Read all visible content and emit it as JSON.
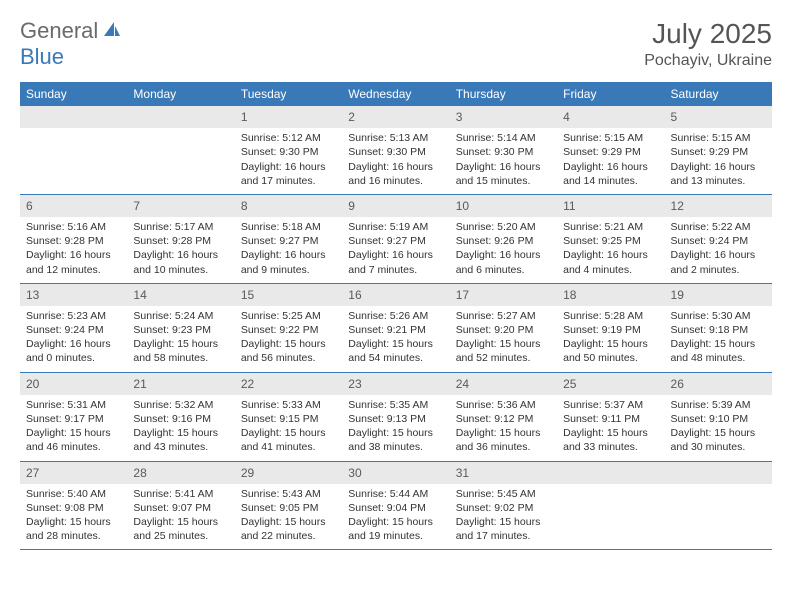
{
  "logo": {
    "part1": "General",
    "part2": "Blue"
  },
  "title": "July 2025",
  "location": "Pochayiv, Ukraine",
  "colors": {
    "header_bg": "#3a79b7",
    "header_text": "#ffffff",
    "daynum_bg": "#e9e9e9",
    "text": "#333333",
    "rule": "#3a79b7"
  },
  "daysOfWeek": [
    "Sunday",
    "Monday",
    "Tuesday",
    "Wednesday",
    "Thursday",
    "Friday",
    "Saturday"
  ],
  "weeks": [
    [
      {
        "n": "",
        "sr": "",
        "ss": "",
        "d1": "",
        "d2": ""
      },
      {
        "n": "",
        "sr": "",
        "ss": "",
        "d1": "",
        "d2": ""
      },
      {
        "n": "1",
        "sr": "Sunrise: 5:12 AM",
        "ss": "Sunset: 9:30 PM",
        "d1": "Daylight: 16 hours",
        "d2": "and 17 minutes."
      },
      {
        "n": "2",
        "sr": "Sunrise: 5:13 AM",
        "ss": "Sunset: 9:30 PM",
        "d1": "Daylight: 16 hours",
        "d2": "and 16 minutes."
      },
      {
        "n": "3",
        "sr": "Sunrise: 5:14 AM",
        "ss": "Sunset: 9:30 PM",
        "d1": "Daylight: 16 hours",
        "d2": "and 15 minutes."
      },
      {
        "n": "4",
        "sr": "Sunrise: 5:15 AM",
        "ss": "Sunset: 9:29 PM",
        "d1": "Daylight: 16 hours",
        "d2": "and 14 minutes."
      },
      {
        "n": "5",
        "sr": "Sunrise: 5:15 AM",
        "ss": "Sunset: 9:29 PM",
        "d1": "Daylight: 16 hours",
        "d2": "and 13 minutes."
      }
    ],
    [
      {
        "n": "6",
        "sr": "Sunrise: 5:16 AM",
        "ss": "Sunset: 9:28 PM",
        "d1": "Daylight: 16 hours",
        "d2": "and 12 minutes."
      },
      {
        "n": "7",
        "sr": "Sunrise: 5:17 AM",
        "ss": "Sunset: 9:28 PM",
        "d1": "Daylight: 16 hours",
        "d2": "and 10 minutes."
      },
      {
        "n": "8",
        "sr": "Sunrise: 5:18 AM",
        "ss": "Sunset: 9:27 PM",
        "d1": "Daylight: 16 hours",
        "d2": "and 9 minutes."
      },
      {
        "n": "9",
        "sr": "Sunrise: 5:19 AM",
        "ss": "Sunset: 9:27 PM",
        "d1": "Daylight: 16 hours",
        "d2": "and 7 minutes."
      },
      {
        "n": "10",
        "sr": "Sunrise: 5:20 AM",
        "ss": "Sunset: 9:26 PM",
        "d1": "Daylight: 16 hours",
        "d2": "and 6 minutes."
      },
      {
        "n": "11",
        "sr": "Sunrise: 5:21 AM",
        "ss": "Sunset: 9:25 PM",
        "d1": "Daylight: 16 hours",
        "d2": "and 4 minutes."
      },
      {
        "n": "12",
        "sr": "Sunrise: 5:22 AM",
        "ss": "Sunset: 9:24 PM",
        "d1": "Daylight: 16 hours",
        "d2": "and 2 minutes."
      }
    ],
    [
      {
        "n": "13",
        "sr": "Sunrise: 5:23 AM",
        "ss": "Sunset: 9:24 PM",
        "d1": "Daylight: 16 hours",
        "d2": "and 0 minutes."
      },
      {
        "n": "14",
        "sr": "Sunrise: 5:24 AM",
        "ss": "Sunset: 9:23 PM",
        "d1": "Daylight: 15 hours",
        "d2": "and 58 minutes."
      },
      {
        "n": "15",
        "sr": "Sunrise: 5:25 AM",
        "ss": "Sunset: 9:22 PM",
        "d1": "Daylight: 15 hours",
        "d2": "and 56 minutes."
      },
      {
        "n": "16",
        "sr": "Sunrise: 5:26 AM",
        "ss": "Sunset: 9:21 PM",
        "d1": "Daylight: 15 hours",
        "d2": "and 54 minutes."
      },
      {
        "n": "17",
        "sr": "Sunrise: 5:27 AM",
        "ss": "Sunset: 9:20 PM",
        "d1": "Daylight: 15 hours",
        "d2": "and 52 minutes."
      },
      {
        "n": "18",
        "sr": "Sunrise: 5:28 AM",
        "ss": "Sunset: 9:19 PM",
        "d1": "Daylight: 15 hours",
        "d2": "and 50 minutes."
      },
      {
        "n": "19",
        "sr": "Sunrise: 5:30 AM",
        "ss": "Sunset: 9:18 PM",
        "d1": "Daylight: 15 hours",
        "d2": "and 48 minutes."
      }
    ],
    [
      {
        "n": "20",
        "sr": "Sunrise: 5:31 AM",
        "ss": "Sunset: 9:17 PM",
        "d1": "Daylight: 15 hours",
        "d2": "and 46 minutes."
      },
      {
        "n": "21",
        "sr": "Sunrise: 5:32 AM",
        "ss": "Sunset: 9:16 PM",
        "d1": "Daylight: 15 hours",
        "d2": "and 43 minutes."
      },
      {
        "n": "22",
        "sr": "Sunrise: 5:33 AM",
        "ss": "Sunset: 9:15 PM",
        "d1": "Daylight: 15 hours",
        "d2": "and 41 minutes."
      },
      {
        "n": "23",
        "sr": "Sunrise: 5:35 AM",
        "ss": "Sunset: 9:13 PM",
        "d1": "Daylight: 15 hours",
        "d2": "and 38 minutes."
      },
      {
        "n": "24",
        "sr": "Sunrise: 5:36 AM",
        "ss": "Sunset: 9:12 PM",
        "d1": "Daylight: 15 hours",
        "d2": "and 36 minutes."
      },
      {
        "n": "25",
        "sr": "Sunrise: 5:37 AM",
        "ss": "Sunset: 9:11 PM",
        "d1": "Daylight: 15 hours",
        "d2": "and 33 minutes."
      },
      {
        "n": "26",
        "sr": "Sunrise: 5:39 AM",
        "ss": "Sunset: 9:10 PM",
        "d1": "Daylight: 15 hours",
        "d2": "and 30 minutes."
      }
    ],
    [
      {
        "n": "27",
        "sr": "Sunrise: 5:40 AM",
        "ss": "Sunset: 9:08 PM",
        "d1": "Daylight: 15 hours",
        "d2": "and 28 minutes."
      },
      {
        "n": "28",
        "sr": "Sunrise: 5:41 AM",
        "ss": "Sunset: 9:07 PM",
        "d1": "Daylight: 15 hours",
        "d2": "and 25 minutes."
      },
      {
        "n": "29",
        "sr": "Sunrise: 5:43 AM",
        "ss": "Sunset: 9:05 PM",
        "d1": "Daylight: 15 hours",
        "d2": "and 22 minutes."
      },
      {
        "n": "30",
        "sr": "Sunrise: 5:44 AM",
        "ss": "Sunset: 9:04 PM",
        "d1": "Daylight: 15 hours",
        "d2": "and 19 minutes."
      },
      {
        "n": "31",
        "sr": "Sunrise: 5:45 AM",
        "ss": "Sunset: 9:02 PM",
        "d1": "Daylight: 15 hours",
        "d2": "and 17 minutes."
      },
      {
        "n": "",
        "sr": "",
        "ss": "",
        "d1": "",
        "d2": ""
      },
      {
        "n": "",
        "sr": "",
        "ss": "",
        "d1": "",
        "d2": ""
      }
    ]
  ]
}
